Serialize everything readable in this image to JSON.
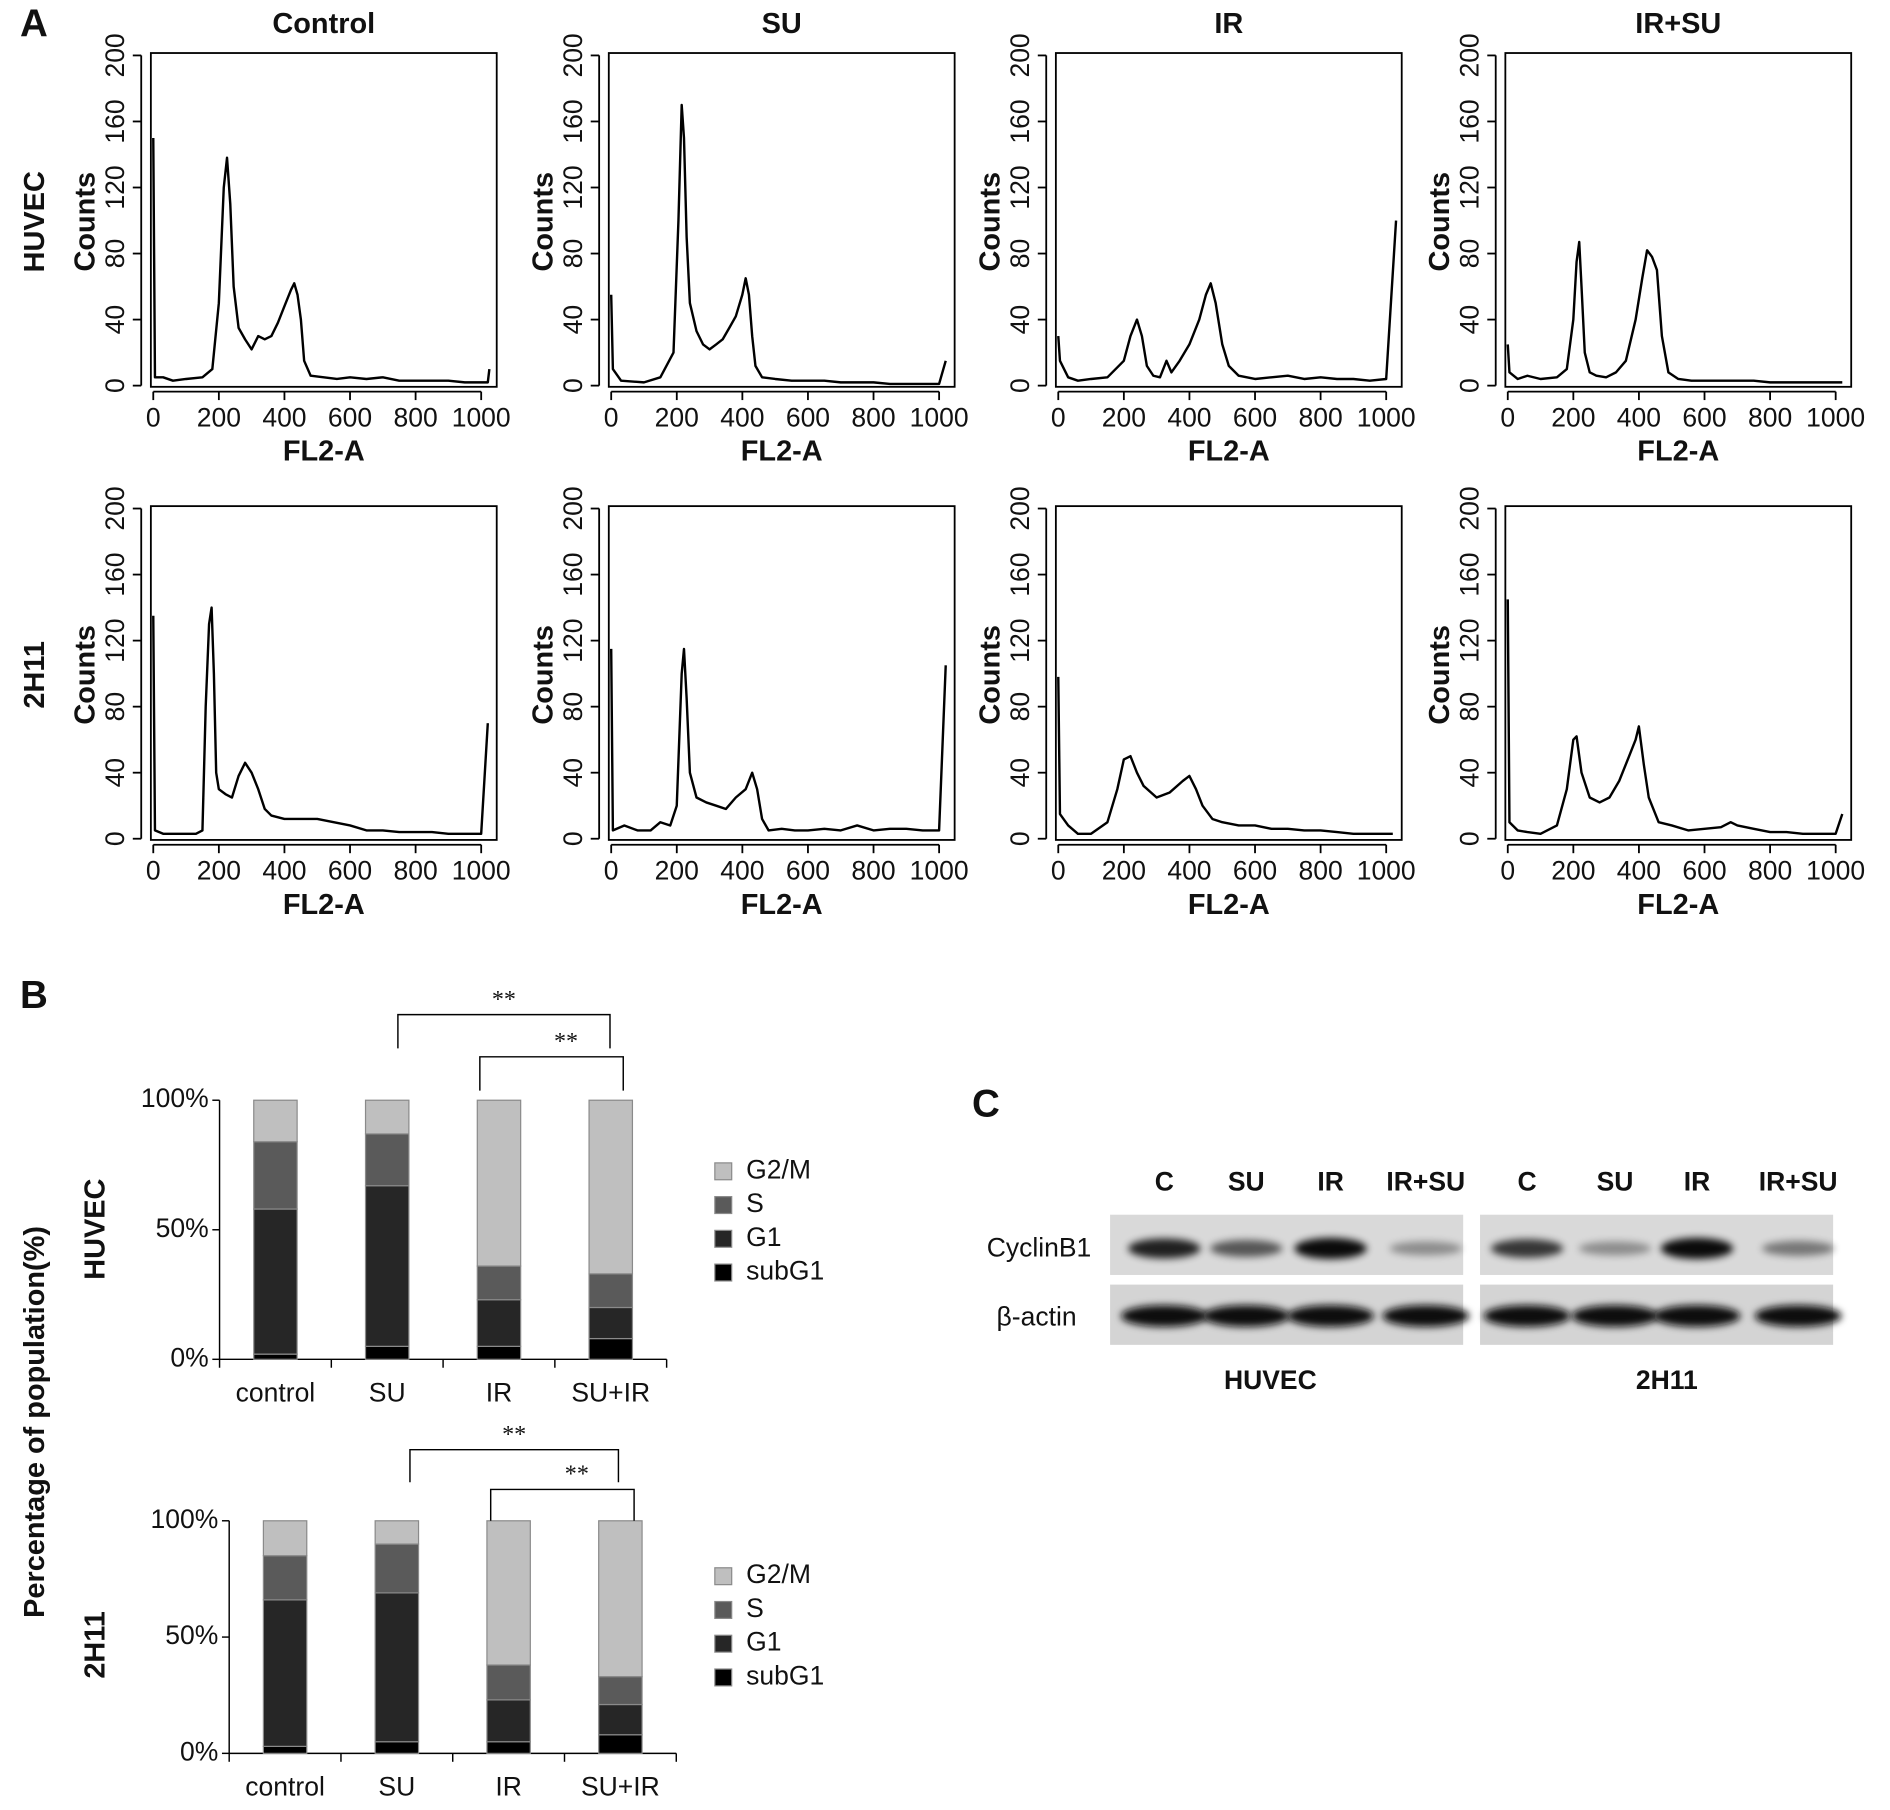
{
  "panel_labels": [
    "A",
    "B"
  ],
  "chart_data": [
    {
      "type": "line",
      "title": "Control",
      "row_label": "HUVEC",
      "xlabel": "FL2-A",
      "ylabel": "Counts",
      "color": "#000000",
      "xlim": [
        0,
        1040
      ],
      "ylim": [
        0,
        200
      ],
      "xticks": [
        0,
        200,
        400,
        600,
        800,
        1000
      ],
      "yticks": [
        0,
        40,
        80,
        120,
        160,
        200
      ],
      "x": [
        0,
        5,
        30,
        60,
        100,
        150,
        180,
        200,
        215,
        225,
        235,
        245,
        260,
        280,
        300,
        320,
        340,
        360,
        380,
        400,
        420,
        430,
        440,
        450,
        460,
        480,
        520,
        560,
        600,
        650,
        700,
        750,
        800,
        850,
        900,
        950,
        1000,
        1020,
        1025
      ],
      "values": [
        150,
        5,
        5,
        3,
        4,
        5,
        10,
        50,
        120,
        138,
        110,
        60,
        35,
        28,
        22,
        30,
        28,
        30,
        38,
        48,
        58,
        62,
        55,
        40,
        15,
        6,
        5,
        4,
        5,
        4,
        5,
        3,
        3,
        3,
        3,
        2,
        2,
        2,
        10
      ]
    },
    {
      "type": "line",
      "title": "SU",
      "xlabel": "FL2-A",
      "ylabel": "Counts",
      "color": "#000000",
      "xlim": [
        0,
        1040
      ],
      "ylim": [
        0,
        200
      ],
      "xticks": [
        0,
        200,
        400,
        600,
        800,
        1000
      ],
      "yticks": [
        0,
        40,
        80,
        120,
        160,
        200
      ],
      "x": [
        0,
        5,
        30,
        100,
        150,
        190,
        205,
        215,
        222,
        230,
        240,
        260,
        280,
        300,
        320,
        340,
        360,
        380,
        400,
        410,
        420,
        430,
        440,
        460,
        500,
        550,
        600,
        650,
        700,
        750,
        800,
        850,
        900,
        950,
        1000,
        1020
      ],
      "values": [
        55,
        10,
        3,
        2,
        5,
        20,
        100,
        170,
        150,
        90,
        50,
        33,
        25,
        22,
        25,
        28,
        35,
        42,
        55,
        65,
        55,
        30,
        12,
        5,
        4,
        3,
        3,
        3,
        2,
        2,
        2,
        1,
        1,
        1,
        1,
        15
      ]
    },
    {
      "type": "line",
      "title": "IR",
      "xlabel": "FL2-A",
      "ylabel": "Counts",
      "color": "#000000",
      "xlim": [
        0,
        1040
      ],
      "ylim": [
        0,
        200
      ],
      "xticks": [
        0,
        200,
        400,
        600,
        800,
        1000
      ],
      "yticks": [
        0,
        40,
        80,
        120,
        160,
        200
      ],
      "x": [
        0,
        5,
        30,
        60,
        100,
        150,
        200,
        220,
        240,
        255,
        270,
        290,
        310,
        330,
        345,
        370,
        400,
        430,
        450,
        465,
        480,
        500,
        520,
        550,
        600,
        650,
        700,
        750,
        800,
        850,
        900,
        950,
        1000,
        1030
      ],
      "values": [
        30,
        15,
        5,
        3,
        4,
        5,
        15,
        30,
        40,
        30,
        12,
        6,
        5,
        15,
        8,
        15,
        25,
        40,
        55,
        62,
        50,
        25,
        12,
        6,
        4,
        5,
        6,
        4,
        5,
        4,
        4,
        3,
        4,
        100
      ]
    },
    {
      "type": "line",
      "title": "IR+SU",
      "xlabel": "FL2-A",
      "ylabel": "Counts",
      "color": "#000000",
      "xlim": [
        0,
        1040
      ],
      "ylim": [
        0,
        200
      ],
      "xticks": [
        0,
        200,
        400,
        600,
        800,
        1000
      ],
      "yticks": [
        0,
        40,
        80,
        120,
        160,
        200
      ],
      "x": [
        0,
        5,
        30,
        60,
        100,
        150,
        180,
        200,
        210,
        218,
        225,
        235,
        250,
        270,
        300,
        330,
        360,
        390,
        410,
        425,
        440,
        455,
        470,
        490,
        520,
        560,
        600,
        650,
        700,
        750,
        800,
        850,
        900,
        950,
        1000,
        1020
      ],
      "values": [
        25,
        8,
        4,
        6,
        4,
        5,
        10,
        40,
        75,
        87,
        60,
        20,
        8,
        6,
        5,
        8,
        15,
        40,
        65,
        82,
        78,
        70,
        30,
        8,
        4,
        3,
        3,
        3,
        3,
        3,
        2,
        2,
        2,
        2,
        2,
        2
      ]
    },
    {
      "type": "line",
      "row_label": "2H11",
      "xlabel": "FL2-A",
      "ylabel": "Counts",
      "color": "#000000",
      "xlim": [
        0,
        1040
      ],
      "ylim": [
        0,
        200
      ],
      "xticks": [
        0,
        200,
        400,
        600,
        800,
        1000
      ],
      "yticks": [
        0,
        40,
        80,
        120,
        160,
        200
      ],
      "x": [
        0,
        5,
        30,
        80,
        130,
        150,
        160,
        170,
        178,
        185,
        192,
        200,
        220,
        240,
        260,
        280,
        300,
        320,
        340,
        360,
        400,
        450,
        500,
        550,
        600,
        650,
        700,
        750,
        800,
        850,
        900,
        950,
        1000,
        1020
      ],
      "values": [
        135,
        5,
        3,
        3,
        3,
        5,
        80,
        130,
        140,
        100,
        40,
        30,
        27,
        25,
        38,
        46,
        40,
        30,
        18,
        14,
        12,
        12,
        12,
        10,
        8,
        5,
        5,
        4,
        4,
        4,
        3,
        3,
        3,
        70
      ]
    },
    {
      "type": "line",
      "xlabel": "FL2-A",
      "ylabel": "Counts",
      "color": "#000000",
      "xlim": [
        0,
        1040
      ],
      "ylim": [
        0,
        200
      ],
      "xticks": [
        0,
        200,
        400,
        600,
        800,
        1000
      ],
      "yticks": [
        0,
        40,
        80,
        120,
        160,
        200
      ],
      "x": [
        0,
        5,
        40,
        80,
        120,
        150,
        180,
        200,
        215,
        222,
        230,
        240,
        260,
        290,
        320,
        350,
        380,
        410,
        430,
        445,
        460,
        480,
        520,
        560,
        600,
        650,
        700,
        750,
        800,
        850,
        900,
        950,
        1000,
        1020
      ],
      "values": [
        115,
        5,
        8,
        5,
        5,
        10,
        8,
        20,
        100,
        115,
        85,
        40,
        25,
        22,
        20,
        18,
        25,
        30,
        40,
        30,
        12,
        5,
        6,
        5,
        5,
        6,
        5,
        8,
        5,
        6,
        6,
        5,
        5,
        105
      ]
    },
    {
      "type": "line",
      "xlabel": "FL2-A",
      "ylabel": "Counts",
      "color": "#000000",
      "xlim": [
        0,
        1040
      ],
      "ylim": [
        0,
        200
      ],
      "xticks": [
        0,
        200,
        400,
        600,
        800,
        1000
      ],
      "yticks": [
        0,
        40,
        80,
        120,
        160,
        200
      ],
      "x": [
        0,
        5,
        30,
        60,
        100,
        150,
        180,
        200,
        220,
        240,
        260,
        300,
        340,
        380,
        400,
        420,
        440,
        470,
        500,
        550,
        600,
        650,
        700,
        750,
        800,
        850,
        900,
        950,
        1000,
        1020
      ],
      "values": [
        98,
        15,
        8,
        3,
        3,
        10,
        30,
        48,
        50,
        40,
        32,
        25,
        28,
        35,
        38,
        30,
        20,
        12,
        10,
        8,
        8,
        6,
        6,
        5,
        5,
        4,
        3,
        3,
        3,
        3
      ]
    },
    {
      "type": "line",
      "xlabel": "FL2-A",
      "ylabel": "Counts",
      "color": "#000000",
      "xlim": [
        0,
        1040
      ],
      "ylim": [
        0,
        200
      ],
      "xticks": [
        0,
        200,
        400,
        600,
        800,
        1000
      ],
      "yticks": [
        0,
        40,
        80,
        120,
        160,
        200
      ],
      "x": [
        0,
        5,
        30,
        60,
        100,
        150,
        180,
        200,
        210,
        225,
        250,
        280,
        310,
        340,
        370,
        390,
        400,
        415,
        430,
        460,
        500,
        550,
        600,
        650,
        680,
        700,
        750,
        800,
        850,
        900,
        950,
        1000,
        1020
      ],
      "values": [
        145,
        10,
        5,
        4,
        3,
        8,
        30,
        60,
        62,
        40,
        25,
        22,
        25,
        35,
        50,
        60,
        68,
        45,
        25,
        10,
        8,
        5,
        6,
        7,
        10,
        8,
        6,
        4,
        4,
        3,
        3,
        3,
        15
      ]
    },
    {
      "type": "bar",
      "stacked": true,
      "row_label": "HUVEC",
      "ylabel": "Percentage of population(%)",
      "categories": [
        "control",
        "SU",
        "IR",
        "SU+IR"
      ],
      "series": [
        {
          "name": "subG1",
          "color": "#000000",
          "values": [
            2,
            5,
            5,
            8
          ]
        },
        {
          "name": "G1",
          "color": "#262626",
          "values": [
            56,
            62,
            18,
            12
          ]
        },
        {
          "name": "S",
          "color": "#5a5a5a",
          "values": [
            26,
            20,
            13,
            13
          ]
        },
        {
          "name": "G2/M",
          "color": "#bfbfbf",
          "values": [
            16,
            13,
            64,
            67
          ]
        }
      ],
      "ylim": [
        0,
        100
      ],
      "yticks": [
        {
          "value": 0,
          "label": "0%"
        },
        {
          "value": 50,
          "label": "50%"
        },
        {
          "value": 100,
          "label": "100%"
        }
      ],
      "annotations": [
        "**",
        "**"
      ]
    },
    {
      "type": "bar",
      "stacked": true,
      "row_label": "2H11",
      "categories": [
        "control",
        "SU",
        "IR",
        "SU+IR"
      ],
      "series": [
        {
          "name": "subG1",
          "color": "#000000",
          "values": [
            3,
            5,
            5,
            8
          ]
        },
        {
          "name": "G1",
          "color": "#262626",
          "values": [
            63,
            64,
            18,
            13
          ]
        },
        {
          "name": "S",
          "color": "#5a5a5a",
          "values": [
            19,
            21,
            15,
            12
          ]
        },
        {
          "name": "G2/M",
          "color": "#bfbfbf",
          "values": [
            15,
            10,
            62,
            67
          ]
        }
      ],
      "ylim": [
        0,
        100
      ],
      "yticks": [
        {
          "value": 0,
          "label": "0%"
        },
        {
          "value": 50,
          "label": "50%"
        },
        {
          "value": 100,
          "label": "100%"
        }
      ],
      "annotations": [
        "**",
        "**"
      ]
    }
  ],
  "blot": {
    "label": "C",
    "rows": [
      "CyclinB1",
      "β-actin"
    ],
    "groups": [
      {
        "name": "HUVEC",
        "lanes": [
          "C",
          "SU",
          "IR",
          "IR+SU"
        ]
      },
      {
        "name": "2H11",
        "lanes": [
          "C",
          "SU",
          "IR",
          "IR+SU"
        ]
      }
    ]
  }
}
